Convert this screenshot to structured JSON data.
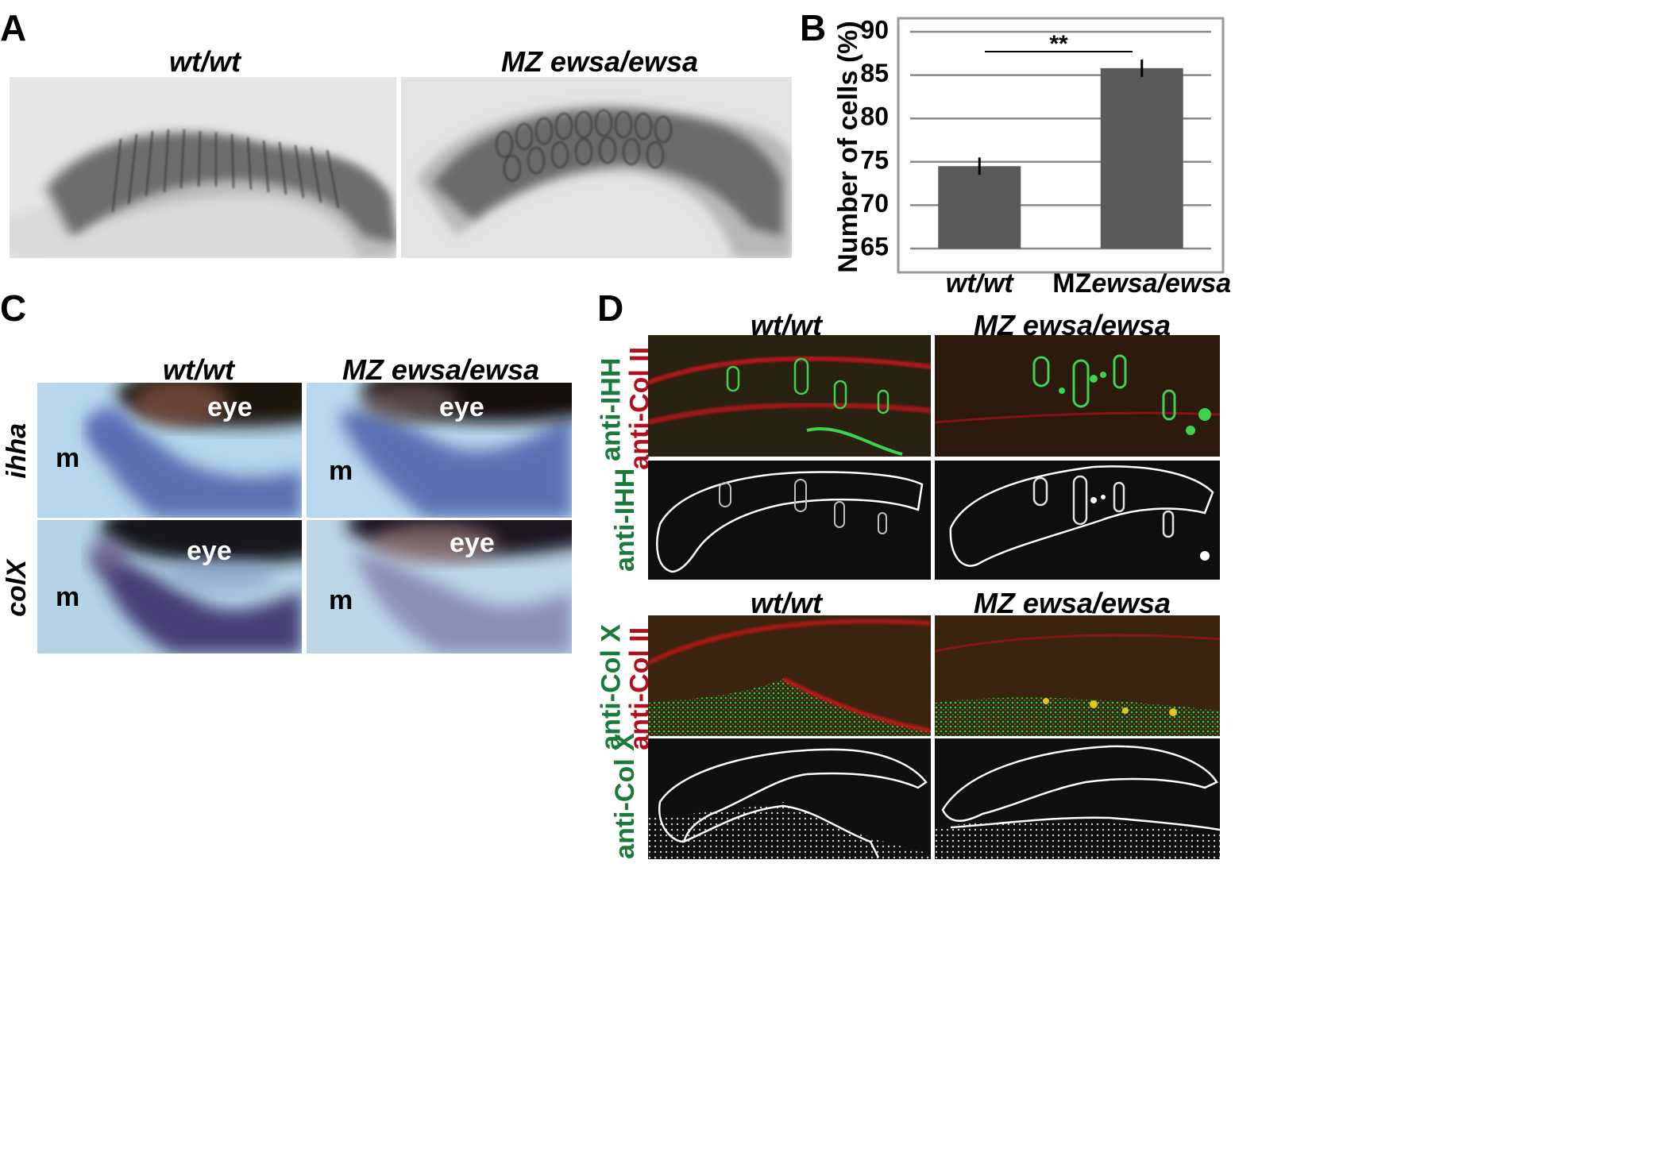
{
  "panels": {
    "a": {
      "letter": "A",
      "genotypes": [
        "wt/wt",
        "MZ ewsa/ewsa"
      ]
    },
    "b": {
      "letter": "B"
    },
    "c": {
      "letter": "C",
      "genotypes": [
        "wt/wt",
        "MZ ewsa/ewsa"
      ],
      "rows": [
        "ihha",
        "colX"
      ],
      "label_eye": "eye",
      "label_m": "m"
    },
    "d": {
      "letter": "D",
      "genotypes_top": [
        "wt/wt",
        "MZ ewsa/ewsa"
      ],
      "genotypes_bottom": [
        "wt/wt",
        "MZ ewsa/ewsa"
      ],
      "row1_label_red": "anti-Col II",
      "row1_label_green": "anti-IHH",
      "row2_label": "anti-IHH",
      "row3_label_red": "anti-Col II",
      "row3_label_green": "anti-Col X",
      "row4_label": "anti-Col X"
    }
  },
  "chart_data": {
    "type": "bar",
    "categories": [
      "wt/wt",
      "MZewsa/ewsa"
    ],
    "category_italic_parts": [
      [
        "wt/wt"
      ],
      [
        "MZ",
        "ewsa/ewsa"
      ]
    ],
    "values": [
      74.5,
      85.8
    ],
    "errors": [
      1.0,
      1.0
    ],
    "ylabel": "Number of cells (%)",
    "ylim": [
      65,
      90
    ],
    "yticks": [
      65,
      70,
      75,
      80,
      85,
      90
    ],
    "grid": true,
    "significance": "**",
    "colors": {
      "bar": "#5a5a5a",
      "grid": "#888888",
      "frame": "#999999"
    }
  }
}
